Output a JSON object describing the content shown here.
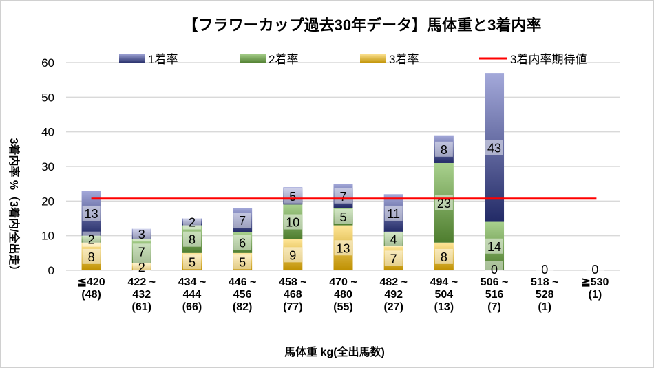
{
  "chart_data": {
    "type": "bar",
    "stacked": true,
    "title": "【フラワーカップ過去30年データ】馬体重と3着内率",
    "xlabel": "馬体重 kg(全出馬数)",
    "ylabel": "3着内率 %（3着内/全出走）",
    "ylim": [
      0,
      60
    ],
    "yticks": [
      0,
      10,
      20,
      30,
      40,
      50,
      60
    ],
    "grid": true,
    "legend_position": "top",
    "categories": [
      "≦420(48)",
      "422 ~ 432(61)",
      "434 ~ 444(66)",
      "446 ~ 456(82)",
      "458 ~ 468(77)",
      "470 ~ 480(55)",
      "482 ~ 492(27)",
      "494 ~ 504(13)",
      "506 ~ 516(7)",
      "518 ~ 528(1)",
      "≧530(1)"
    ],
    "series": [
      {
        "name": "3着率",
        "color": "#c9a227",
        "values": [
          8,
          2,
          5,
          5,
          9,
          13,
          7,
          8,
          0,
          0,
          0
        ]
      },
      {
        "name": "2着率",
        "color": "#6a9a45",
        "values": [
          2,
          7,
          8,
          6,
          10,
          5,
          4,
          23,
          14,
          0,
          0
        ]
      },
      {
        "name": "1着率",
        "color": "#4a52a0",
        "values": [
          13,
          3,
          2,
          7,
          5,
          7,
          11,
          8,
          43,
          0,
          0
        ]
      }
    ],
    "reference_line": {
      "name": "3着内率期待値",
      "color": "#ff0000",
      "value": 20.7
    }
  }
}
